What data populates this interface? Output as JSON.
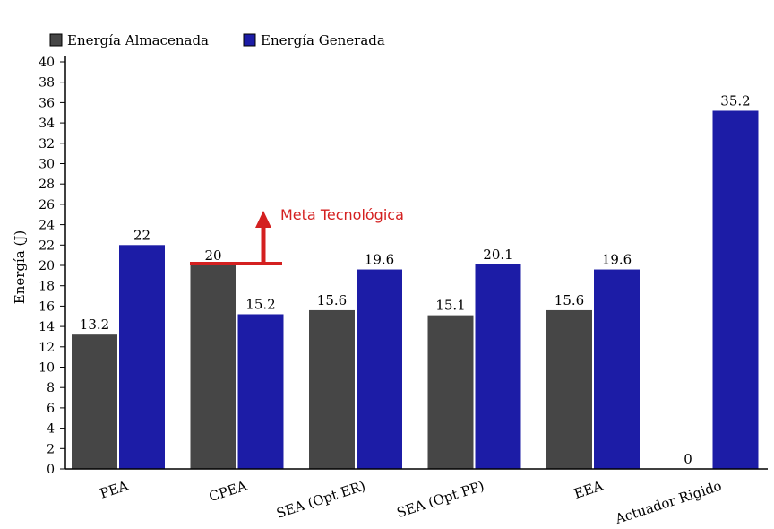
{
  "chart_data": {
    "type": "bar",
    "categories": [
      "PEA",
      "CPEA",
      "SEA (Opt ER)",
      "SEA (Opt PP)",
      "EEA",
      "Actuador Rigido"
    ],
    "series": [
      {
        "name": "Energía Almacenada",
        "values": [
          13.2,
          20,
          15.6,
          15.1,
          15.6,
          0
        ],
        "color": "#464646"
      },
      {
        "name": "Energía Generada",
        "values": [
          22,
          15.2,
          19.6,
          20.1,
          19.6,
          35.2
        ],
        "color": "#1c1ca6"
      }
    ],
    "data_labels": [
      [
        "13.2",
        "20",
        "15.6",
        "15.1",
        "15.6",
        "0"
      ],
      [
        "22",
        "15.2",
        "19.6",
        "20.1",
        "19.6",
        "35.2"
      ]
    ],
    "ylabel": "Energía (J)",
    "xlabel": "",
    "ylim": [
      0,
      40
    ],
    "yticks": [
      0,
      2,
      4,
      6,
      8,
      10,
      12,
      14,
      16,
      18,
      20,
      22,
      24,
      26,
      28,
      30,
      32,
      34,
      36,
      38,
      40
    ],
    "legend_position": "top-left",
    "grid": false,
    "annotation": {
      "text": "Meta Tecnológica",
      "value": 20,
      "color": "#d42020"
    }
  }
}
